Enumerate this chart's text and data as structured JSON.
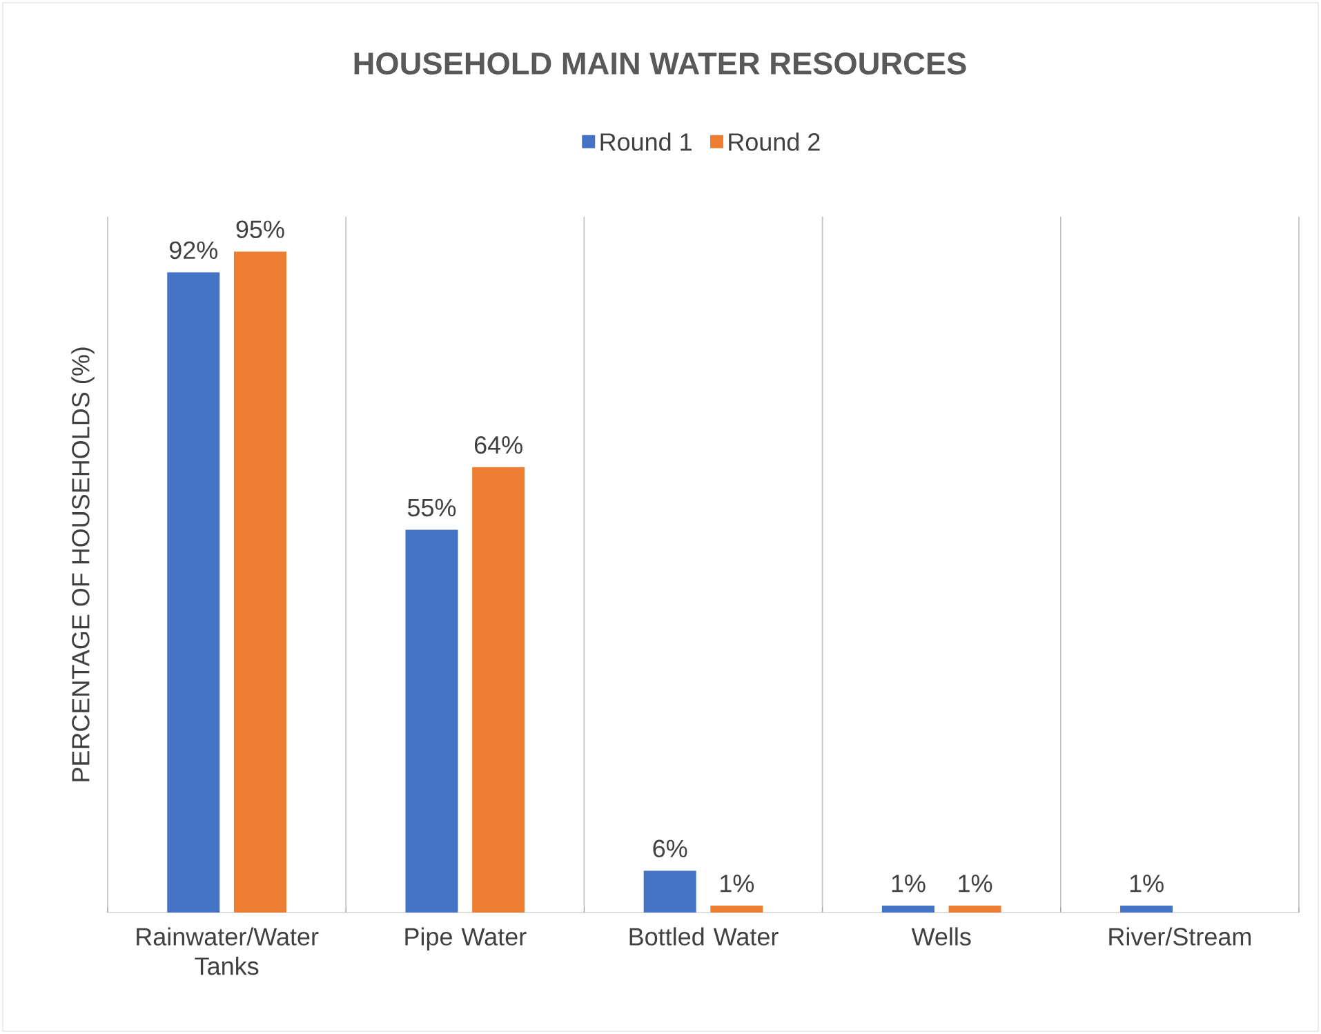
{
  "chart_data": {
    "type": "bar",
    "title": "HOUSEHOLD MAIN WATER RESOURCES",
    "ylabel": "PERCENTAGE OF HOUSEHOLDS (%)",
    "categories": [
      "Rainwater/Water Tanks",
      "Pipe Water",
      "Bottled Water",
      "Wells",
      "River/Stream"
    ],
    "series": [
      {
        "name": "Round 1",
        "color": "#4472c4",
        "values": [
          92,
          55,
          6,
          1,
          1
        ],
        "value_labels": [
          "92%",
          "55%",
          "6%",
          "1%",
          "1%"
        ]
      },
      {
        "name": "Round 2",
        "color": "#ed7d31",
        "values": [
          95,
          64,
          1,
          1,
          null
        ],
        "value_labels": [
          "95%",
          "64%",
          "1%",
          "1%",
          null
        ]
      }
    ],
    "ylim": [
      0,
      100
    ],
    "tick_labels": "x",
    "grid": "x",
    "legend": "top"
  }
}
